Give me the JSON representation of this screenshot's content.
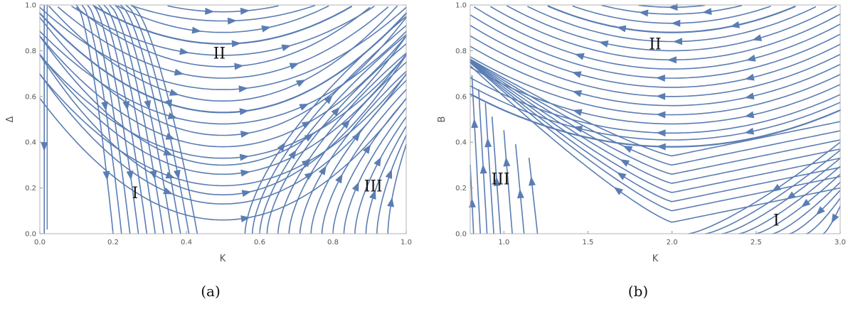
{
  "chart_data": [
    {
      "type": "streamplot",
      "caption": "(a)",
      "xlabel": "K",
      "ylabel": "Δ",
      "xlim": [
        0.0,
        1.0
      ],
      "ylim": [
        0.0,
        1.0
      ],
      "xticks": [
        "0.0",
        "0.2",
        "0.4",
        "0.6",
        "0.8",
        "1.0"
      ],
      "yticks": [
        "0.0",
        "0.2",
        "0.4",
        "0.6",
        "0.8",
        "1.0"
      ],
      "stream_color": "#5a7db3",
      "regions": [
        {
          "label": "I",
          "x": 0.26,
          "y": 0.18
        },
        {
          "label": "II",
          "x": 0.49,
          "y": 0.79
        },
        {
          "label": "III",
          "x": 0.91,
          "y": 0.21
        }
      ]
    },
    {
      "type": "streamplot",
      "caption": "(b)",
      "xlabel": "K",
      "ylabel": "B",
      "xlim": [
        0.8,
        3.0
      ],
      "ylim": [
        0.0,
        1.0
      ],
      "xticks": [
        "1.0",
        "1.5",
        "2.0",
        "2.5",
        "3.0"
      ],
      "yticks": [
        "0.0",
        "0.2",
        "0.4",
        "0.6",
        "0.8",
        "1.0"
      ],
      "stream_color": "#5a7db3",
      "regions": [
        {
          "label": "II",
          "x": 1.9,
          "y": 0.83
        },
        {
          "label": "III",
          "x": 0.98,
          "y": 0.24
        },
        {
          "label": "I",
          "x": 2.62,
          "y": 0.06
        }
      ]
    }
  ]
}
